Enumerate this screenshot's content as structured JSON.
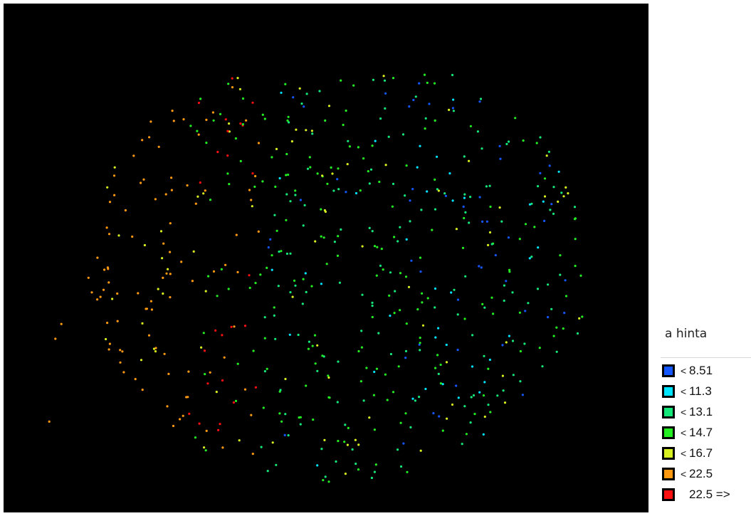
{
  "chart_data": {
    "type": "scatter",
    "title": "",
    "xlabel": "",
    "ylabel": "",
    "legend_title": "a hinta",
    "legend_position": "bottom-right",
    "background": "#000000",
    "classes": [
      {
        "sep": "<",
        "value": "8.51",
        "color": "#1457ff"
      },
      {
        "sep": "<",
        "value": "11.3",
        "color": "#00e5ff"
      },
      {
        "sep": "<",
        "value": "13.1",
        "color": "#14e87a"
      },
      {
        "sep": "<",
        "value": "14.7",
        "color": "#22ee22"
      },
      {
        "sep": "<",
        "value": "16.7",
        "color": "#d8f020"
      },
      {
        "sep": "<",
        "value": "22.5",
        "color": "#ff9a10"
      },
      {
        "sep": "",
        "value": "22.5 =>",
        "color": "#ff1010"
      }
    ]
  }
}
